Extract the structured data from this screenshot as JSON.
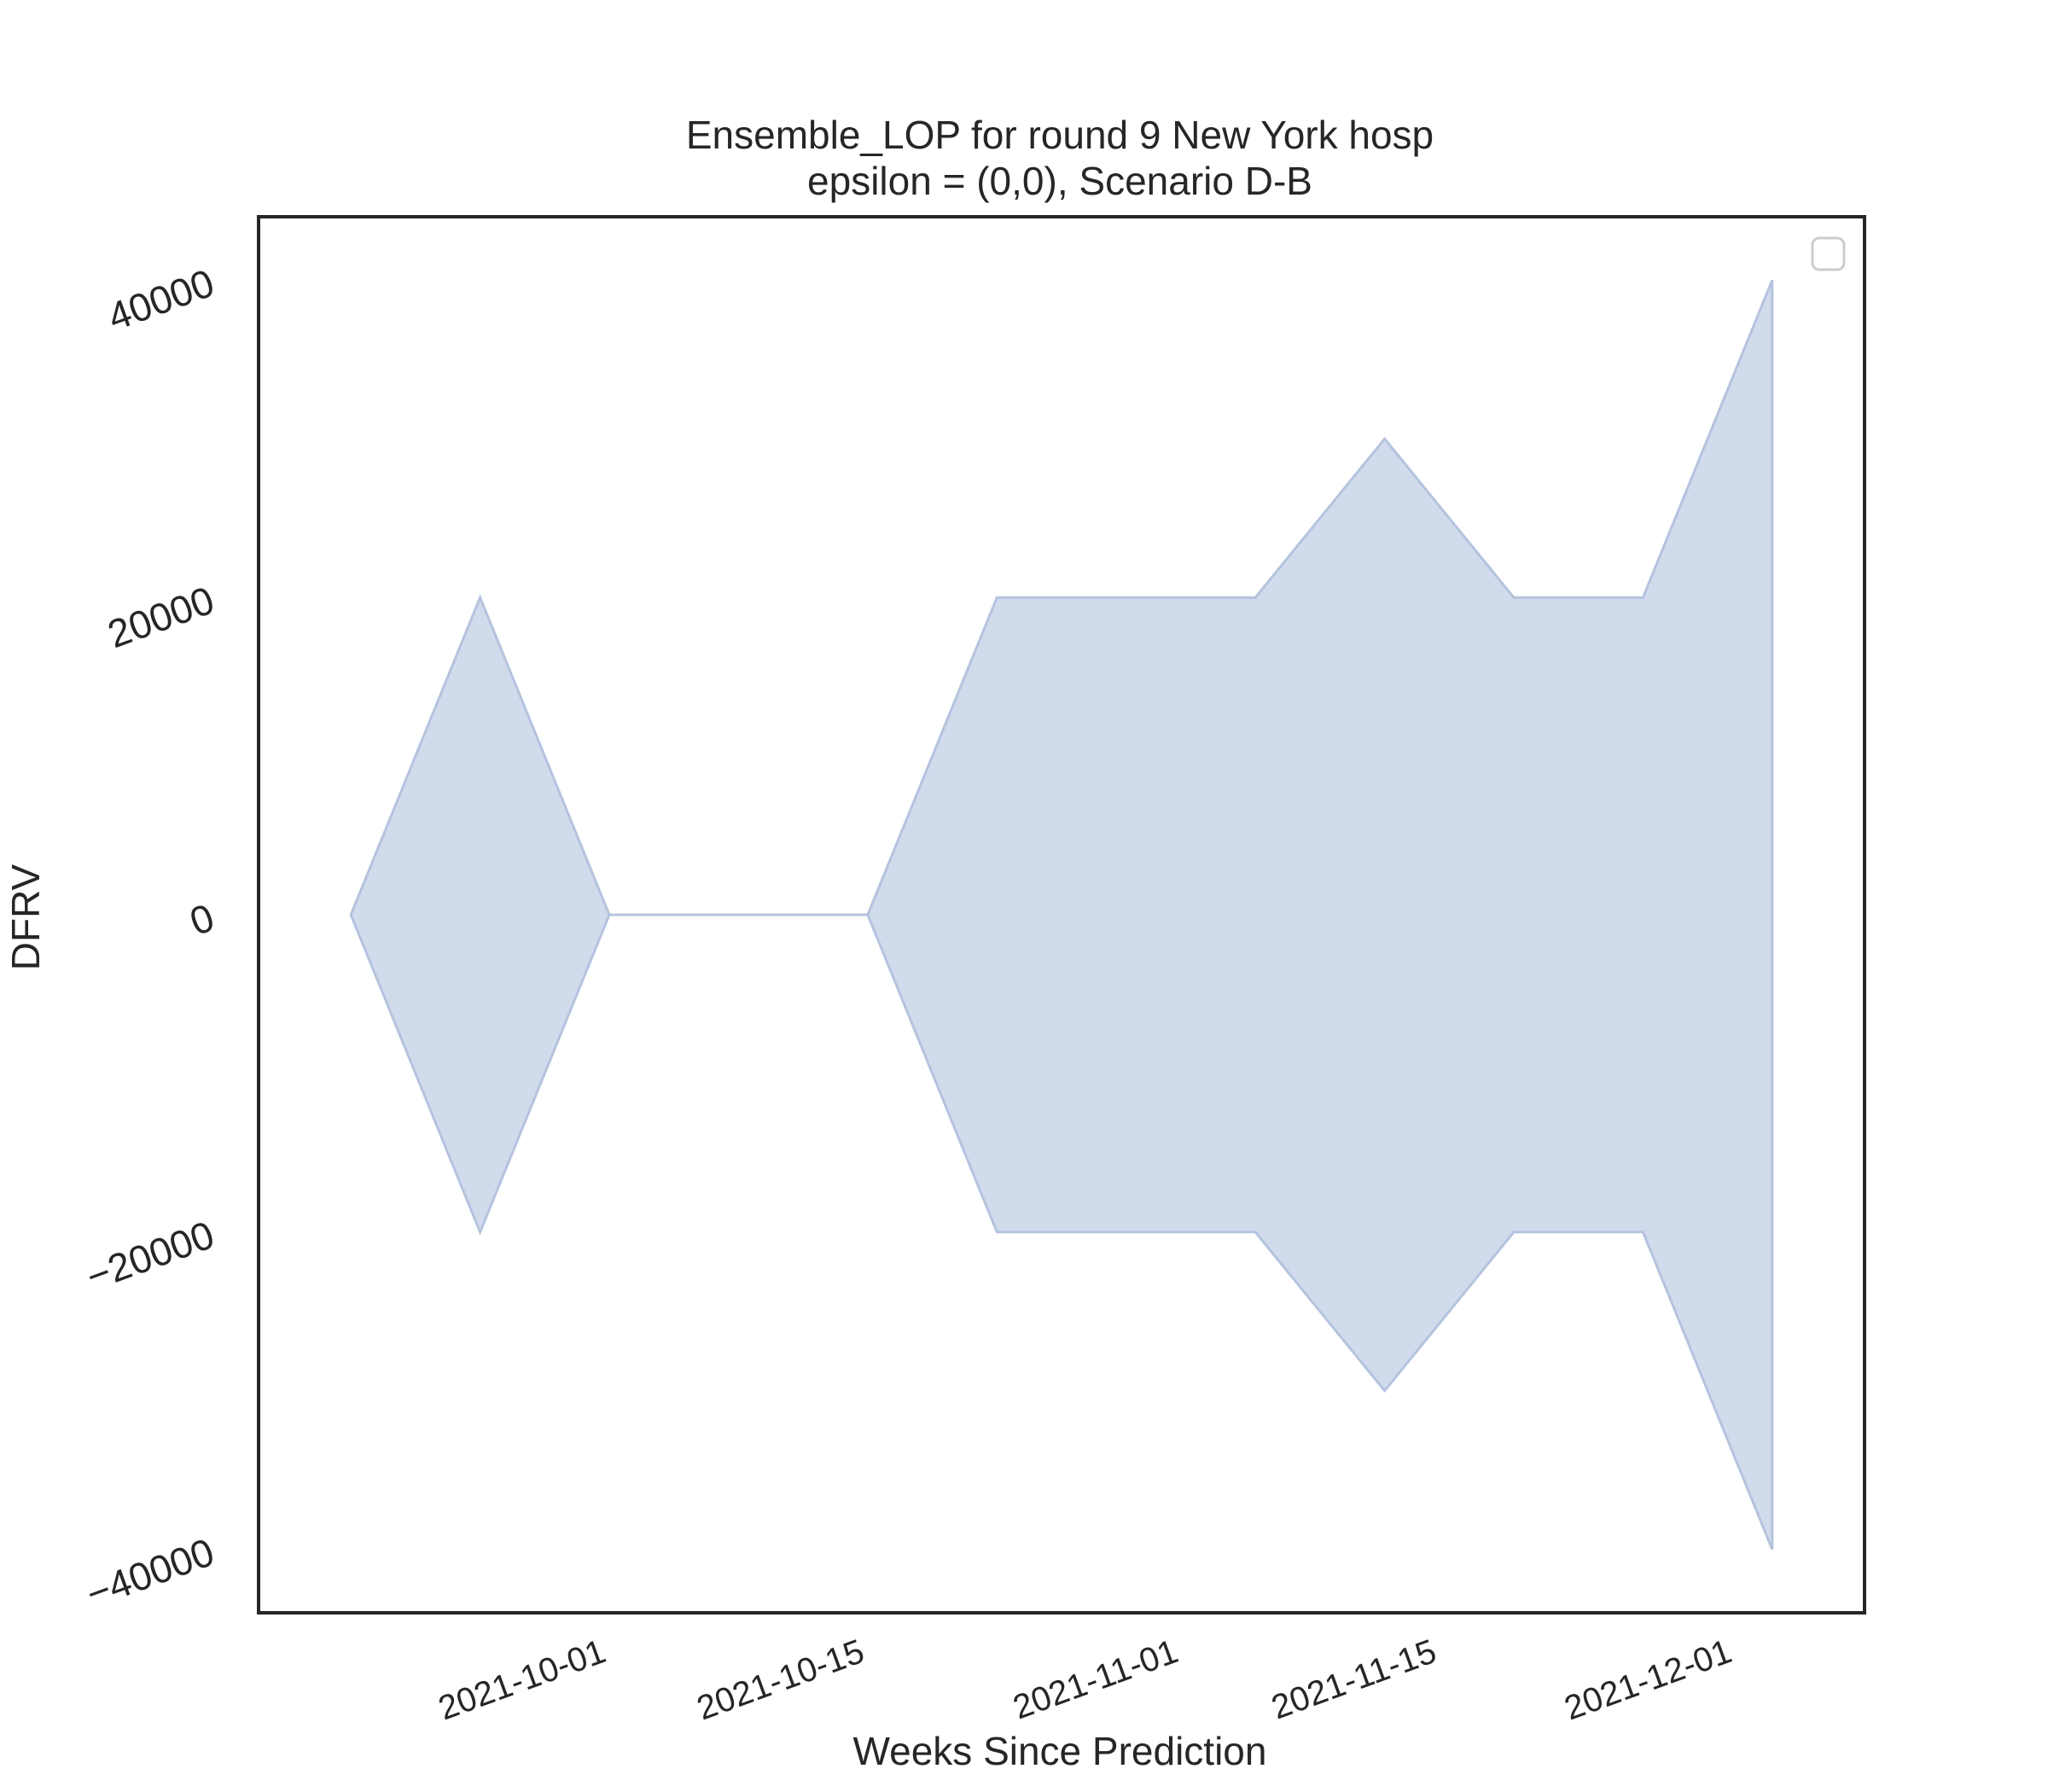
{
  "chart_data": {
    "type": "area",
    "title": "Ensemble_LOP for round 9 New York hosp",
    "subtitle": "epsilon = (0,0), Scenario D-B",
    "xlabel": "Weeks Since Prediction",
    "ylabel": "DFRV",
    "x": [
      "2021-09-18",
      "2021-09-25",
      "2021-10-02",
      "2021-10-09",
      "2021-10-16",
      "2021-10-23",
      "2021-10-30",
      "2021-11-06",
      "2021-11-13",
      "2021-11-20",
      "2021-11-27",
      "2021-12-04"
    ],
    "upper": [
      0,
      20000,
      0,
      0,
      0,
      20000,
      20000,
      20000,
      30000,
      20000,
      20000,
      40000
    ],
    "lower": [
      0,
      -20000,
      0,
      0,
      0,
      -20000,
      -20000,
      -20000,
      -30000,
      -20000,
      -20000,
      -40000
    ],
    "xticks": [
      "2021-10-01",
      "2021-10-15",
      "2021-11-01",
      "2021-11-15",
      "2021-12-01"
    ],
    "yticks": [
      -40000,
      -20000,
      0,
      20000,
      40000
    ],
    "ytick_labels": [
      "−40000",
      "−20000",
      "0",
      "20000",
      "40000"
    ],
    "ylim": [
      -44000,
      44000
    ],
    "xlim": [
      "2021-09-13",
      "2021-12-09"
    ],
    "fill_color": "#d2dbec",
    "line_color": "#b4c3de",
    "grid": false,
    "legend": "top-right (empty)"
  }
}
